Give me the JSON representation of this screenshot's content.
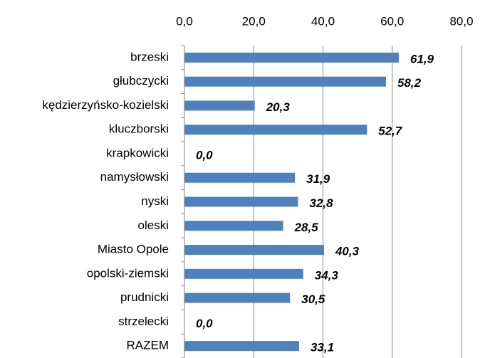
{
  "chart_data": {
    "type": "bar",
    "orientation": "horizontal",
    "categories": [
      "brzeski",
      "głubczycki",
      "kędzierzyńsko-kozielski",
      "kluczborski",
      "krapkowicki",
      "namysłowski",
      "nyski",
      "oleski",
      "Miasto Opole",
      "opolski-ziemski",
      "prudnicki",
      "strzelecki",
      "RAZEM"
    ],
    "values": [
      61.9,
      58.2,
      20.3,
      52.7,
      0.0,
      31.9,
      32.8,
      28.5,
      40.3,
      34.3,
      30.5,
      0.0,
      33.1
    ],
    "value_labels": [
      "61,9",
      "58,2",
      "20,3",
      "52,7",
      "0,0",
      "31,9",
      "32,8",
      "28,5",
      "40,3",
      "34,3",
      "30,5",
      "0,0",
      "33,1"
    ],
    "color": "#4f81bd",
    "xlim": [
      0,
      80
    ],
    "xticks": [
      {
        "value": 0,
        "label": "0,0"
      },
      {
        "value": 20,
        "label": "20,0"
      },
      {
        "value": 40,
        "label": "40,0"
      },
      {
        "value": 60,
        "label": "60,0"
      },
      {
        "value": 80,
        "label": "80,0"
      }
    ],
    "grid": true
  }
}
